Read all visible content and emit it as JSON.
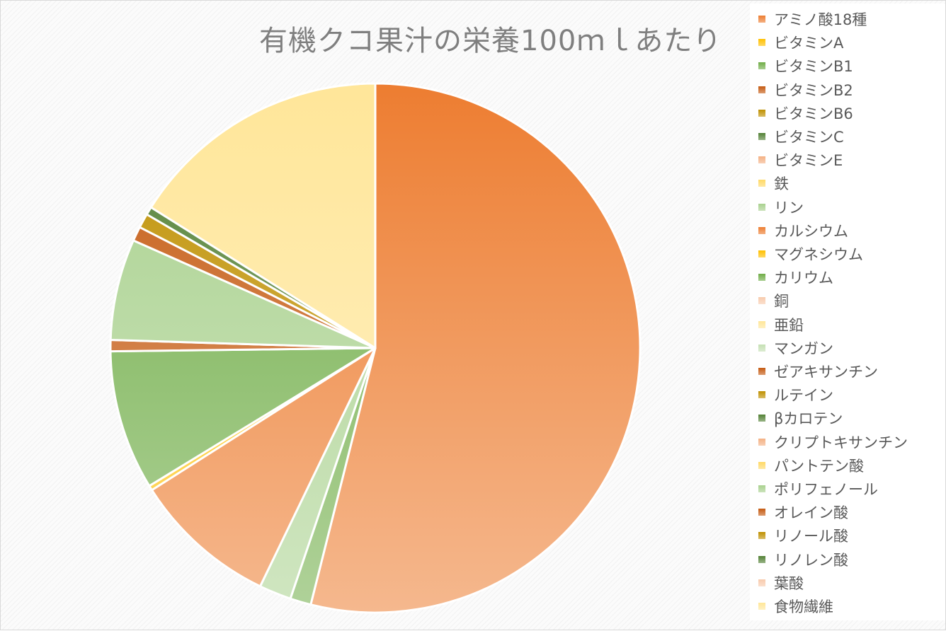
{
  "chart_data": {
    "type": "pie",
    "title": "有機クコ果汁の栄養100ｍｌあたり",
    "legend_position": "right",
    "start_angle_deg": 0,
    "direction": "clockwise",
    "slices": [
      {
        "label": "アミノ酸18種",
        "value": 55.0,
        "color": "#ed7d31"
      },
      {
        "label": "ビタミンA",
        "value": 0.0,
        "color": "#ffc000"
      },
      {
        "label": "ビタミンB1",
        "value": 1.3,
        "color": "#70ad47"
      },
      {
        "label": "ビタミンB2",
        "value": 0.0,
        "color": "#c55a11"
      },
      {
        "label": "ビタミンB6",
        "value": 0.0,
        "color": "#bf9000"
      },
      {
        "label": "ビタミンC",
        "value": 0.0,
        "color": "#538135"
      },
      {
        "label": "ビタミンE",
        "value": 0.0,
        "color": "#f4b183"
      },
      {
        "label": "鉄",
        "value": 0.0,
        "color": "#ffd966"
      },
      {
        "label": "リン",
        "value": 2.0,
        "color": "#a9d18e"
      },
      {
        "label": "カルシウム",
        "value": 9.0,
        "color": "#ed7d31"
      },
      {
        "label": "マグネシウム",
        "value": 0.3,
        "color": "#ffc000"
      },
      {
        "label": "カリウム",
        "value": 8.7,
        "color": "#70ad47"
      },
      {
        "label": "銅",
        "value": 0.0,
        "color": "#f8cbad"
      },
      {
        "label": "亜鉛",
        "value": 0.0,
        "color": "#ffe699"
      },
      {
        "label": "マンガン",
        "value": 0.0,
        "color": "#c5e0b4"
      },
      {
        "label": "ゼアキサンチン",
        "value": 0.7,
        "color": "#c55a11"
      },
      {
        "label": "ルテイン",
        "value": 0.0,
        "color": "#bf9000"
      },
      {
        "label": "βカロテン",
        "value": 0.0,
        "color": "#538135"
      },
      {
        "label": "クリプトキサンチン",
        "value": 0.0,
        "color": "#f4b183"
      },
      {
        "label": "パントテン酸",
        "value": 0.0,
        "color": "#ffd966"
      },
      {
        "label": "ポリフェノール",
        "value": 6.3,
        "color": "#a9d18e"
      },
      {
        "label": "オレイン酸",
        "value": 0.9,
        "color": "#c55a11"
      },
      {
        "label": "リノール酸",
        "value": 0.9,
        "color": "#bf9000"
      },
      {
        "label": "リノレン酸",
        "value": 0.5,
        "color": "#538135"
      },
      {
        "label": "葉酸",
        "value": 0.0,
        "color": "#f8cbad"
      },
      {
        "label": "食物繊維",
        "value": 16.4,
        "color": "#ffe699"
      }
    ]
  }
}
